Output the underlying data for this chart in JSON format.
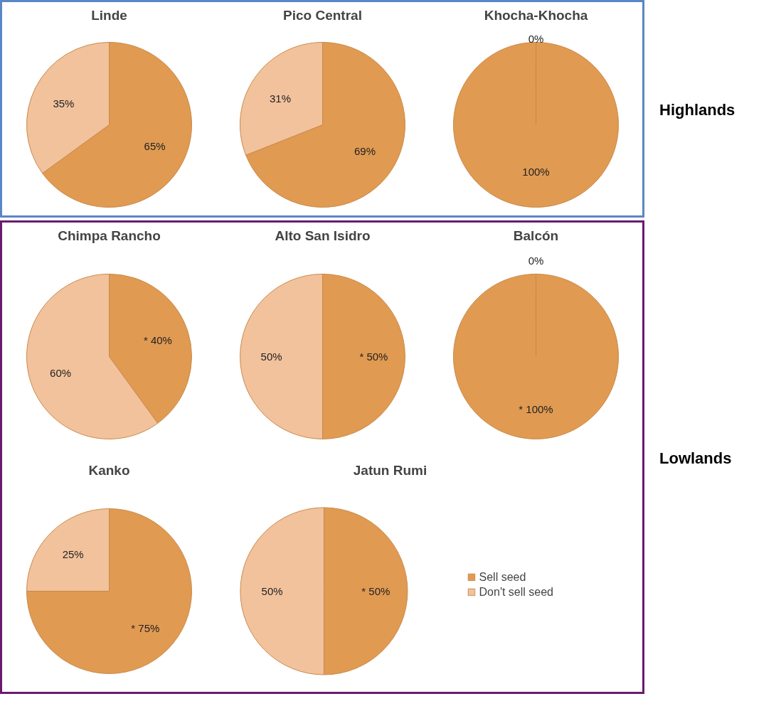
{
  "chart_data": [
    {
      "type": "pie",
      "title": "Linde",
      "categories": [
        null,
        null
      ],
      "values": [
        65,
        35
      ],
      "colors": [
        "#e09a52",
        "#f2c29d"
      ],
      "value_labels": [
        "65%",
        "35%"
      ]
    },
    {
      "type": "pie",
      "title": "Pico Central",
      "categories": [
        null,
        null
      ],
      "values": [
        69,
        31
      ],
      "colors": [
        "#e09a52",
        "#f2c29d"
      ],
      "value_labels": [
        "69%",
        "31%"
      ]
    },
    {
      "type": "pie",
      "title": "Khocha-Khocha",
      "categories": [
        null,
        null
      ],
      "values": [
        100,
        0
      ],
      "colors": [
        "#e09a52",
        "#f2c29d"
      ],
      "value_labels": [
        "100%",
        "0%"
      ],
      "annotations": [
        "Highlands"
      ]
    },
    {
      "type": "pie",
      "title": "Chimpa Rancho",
      "categories": [
        null,
        null
      ],
      "values": [
        40,
        60
      ],
      "colors": [
        "#e09a52",
        "#f2c29d"
      ],
      "value_labels": [
        "* 40%",
        "60%"
      ]
    },
    {
      "type": "pie",
      "title": "Alto San Isidro",
      "categories": [
        null,
        null
      ],
      "values": [
        50,
        50
      ],
      "colors": [
        "#e09a52",
        "#f2c29d"
      ],
      "value_labels": [
        "* 50%",
        "50%"
      ]
    },
    {
      "type": "pie",
      "title": "Balcón",
      "categories": [
        null,
        null
      ],
      "values": [
        100,
        0
      ],
      "colors": [
        "#e09a52",
        "#f2c29d"
      ],
      "value_labels": [
        "* 100%",
        "0%"
      ],
      "annotations": [
        "Lowlands"
      ]
    },
    {
      "type": "pie",
      "title": "Kanko",
      "categories": [
        null,
        null
      ],
      "values": [
        75,
        25
      ],
      "colors": [
        "#e09a52",
        "#f2c29d"
      ],
      "value_labels": [
        "* 75%",
        "25%"
      ]
    },
    {
      "type": "pie",
      "title": "Jatun Rumi",
      "categories": [
        "Sell seed",
        "Don't sell seed"
      ],
      "values": [
        50,
        50
      ],
      "colors": [
        "#e09a52",
        "#f2c29d"
      ],
      "value_labels": [
        "* 50%",
        "50%"
      ],
      "legend": "right"
    }
  ]
}
